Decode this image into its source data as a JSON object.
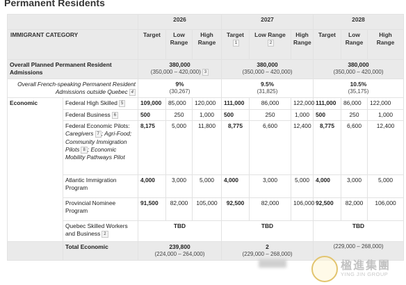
{
  "title": "Permanent Residents",
  "years": [
    "2026",
    "2027",
    "2028"
  ],
  "header": {
    "category": "IMMIGRANT CATEGORY",
    "target": "Target",
    "low_range": "Low Range",
    "high_range": "High Range",
    "notes": {
      "target_2027": "1",
      "low_2027": "2"
    }
  },
  "overall": {
    "label": "Overall Planned Permanent Resident Admissions",
    "note": "3",
    "values": [
      {
        "target": "380,000",
        "range": "(350,000 – 420,000)"
      },
      {
        "target": "380,000",
        "range": "(350,000 – 420,000)"
      },
      {
        "target": "380,000",
        "range": "(350,000 – 420,000)"
      }
    ]
  },
  "french": {
    "label": "Overall French-speaking Permanent Resident Admissions outside Quebec",
    "note": "4",
    "values": [
      {
        "pct": "9%",
        "count": "(30,267)"
      },
      {
        "pct": "9.5%",
        "count": "(31,825)"
      },
      {
        "pct": "10.5%",
        "count": "(35,175)"
      }
    ]
  },
  "economic": {
    "label": "Economic",
    "rows": [
      {
        "name": "Federal High Skilled",
        "note": "5",
        "cells": [
          "109,000",
          "85,000",
          "120,000",
          "111,000",
          "86,000",
          "122,000",
          "111,000",
          "86,000",
          "122,000"
        ]
      },
      {
        "name": "Federal Business",
        "note": "6",
        "cells": [
          "500",
          "250",
          "1,000",
          "500",
          "250",
          "1,000",
          "500",
          "250",
          "1,000"
        ]
      },
      {
        "name": "Federal Economic Pilots:",
        "pilot_note_1": "7",
        "pilot_text_1": "Caregivers",
        "pilot_text_2": "; Agri-Food; Community Immigration Pilots",
        "pilot_note_2": "8",
        "pilot_text_3": "; Economic Mobility Pathways Pilot",
        "cells": [
          "8,175",
          "5,000",
          "11,800",
          "8,775",
          "6,600",
          "12,400",
          "8,775",
          "6,600",
          "12,400"
        ]
      },
      {
        "name": "Atlantic Immigration Program",
        "cells": [
          "4,000",
          "3,000",
          "5,000",
          "4,000",
          "3,000",
          "5,000",
          "4,000",
          "3,000",
          "5,000"
        ]
      },
      {
        "name": "Provincial Nominee Program",
        "cells": [
          "91,500",
          "82,000",
          "105,000",
          "92,500",
          "82,000",
          "106,000",
          "92,500",
          "82,000",
          "106,000"
        ]
      },
      {
        "name": "Quebec Skilled Workers and Business",
        "note": "2",
        "cells": [
          "TBD",
          "TBD",
          "TBD"
        ]
      }
    ],
    "total": {
      "label": "Total Economic",
      "values": [
        {
          "target": "239,800",
          "range": "(224,000 – 264,000)"
        },
        {
          "target": "2",
          "range": "(229,000 – 268,000)"
        },
        {
          "target": "",
          "range": "(229,000 – 268,000)"
        }
      ]
    }
  },
  "watermark": {
    "cn": "楹進集團",
    "en": "YING JIN GROUP"
  }
}
